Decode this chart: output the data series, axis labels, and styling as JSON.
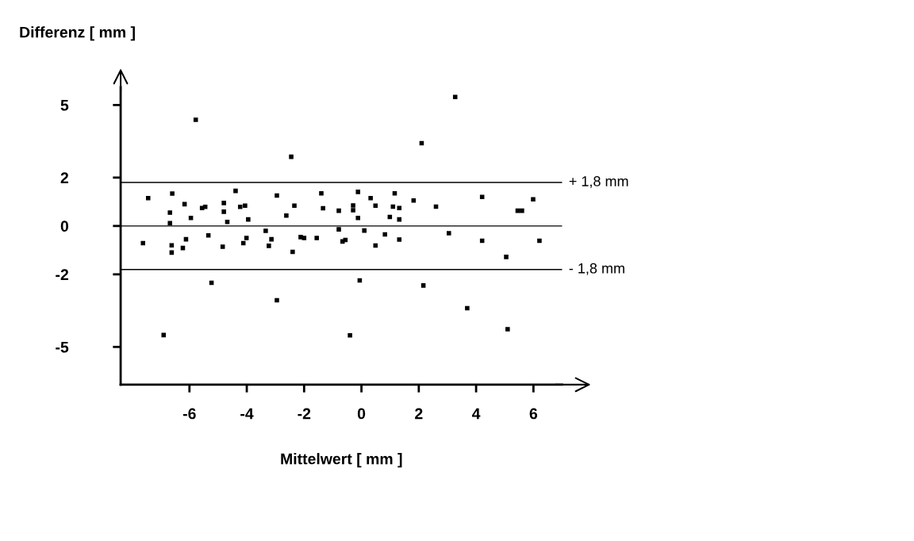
{
  "chart_data": {
    "type": "scatter",
    "xlabel": "Mittelwert [ mm ]",
    "ylabel": "Differenz [ mm ]",
    "x": [
      -5.78,
      -2.45,
      -7.44,
      -6.6,
      -6.68,
      -6.68,
      -6.17,
      -5.95,
      -5.56,
      -5.45,
      -4.8,
      -4.8,
      -4.68,
      -4.39,
      -4.23,
      -4.06,
      -3.95,
      -2.95,
      -2.62,
      -2.34,
      -1.4,
      -1.34,
      -0.79,
      -0.79,
      -7.62,
      -6.62,
      -6.62,
      -6.23,
      -6.12,
      -5.34,
      -4.84,
      -4.12,
      -4.01,
      -3.34,
      -3.23,
      -3.14,
      -2.4,
      -2.12,
      -2.0,
      -1.56,
      -0.66,
      -0.56,
      -5.23,
      -2.95,
      -6.9,
      3.27,
      2.1,
      -0.12,
      1.16,
      0.32,
      1.82,
      4.21,
      5.99,
      -0.29,
      -0.29,
      0.49,
      1.1,
      1.32,
      2.6,
      5.45,
      5.6,
      -0.12,
      0.99,
      1.32,
      0.1,
      0.82,
      1.32,
      0.49,
      3.05,
      4.21,
      6.21,
      5.05,
      -0.06,
      2.16,
      3.69,
      -0.4,
      5.1
    ],
    "values": [
      4.39,
      2.86,
      1.15,
      1.34,
      0.55,
      0.12,
      0.9,
      0.33,
      0.74,
      0.79,
      0.95,
      0.59,
      0.17,
      1.45,
      0.79,
      0.84,
      0.27,
      1.26,
      0.43,
      0.84,
      1.35,
      0.73,
      0.63,
      -0.14,
      -0.71,
      -0.8,
      -1.1,
      -0.91,
      -0.55,
      -0.39,
      -0.86,
      -0.71,
      -0.5,
      -0.2,
      -0.82,
      -0.55,
      -1.07,
      -0.46,
      -0.5,
      -0.5,
      -0.64,
      -0.58,
      -2.35,
      -3.07,
      -4.51,
      5.33,
      3.42,
      1.41,
      1.35,
      1.15,
      1.05,
      1.2,
      1.1,
      0.85,
      0.65,
      0.84,
      0.8,
      0.74,
      0.8,
      0.63,
      0.63,
      0.33,
      0.37,
      0.27,
      -0.19,
      -0.35,
      -0.56,
      -0.81,
      -0.3,
      -0.61,
      -0.61,
      -1.28,
      -2.25,
      -2.46,
      -3.4,
      -4.52,
      -4.27
    ],
    "color": "#000000",
    "marker": "square",
    "xlim": [
      -8.4,
      7.0
    ],
    "ylim": [
      -6.56,
      5.74
    ],
    "xticks": [
      -6,
      -4,
      -2,
      0,
      2,
      4,
      6
    ],
    "yticks": [
      5,
      2,
      0,
      -2,
      -5
    ],
    "ref_lines": [
      {
        "axis": "y",
        "value": 1.8,
        "label": "+ 1,8 mm",
        "color": "#000000"
      },
      {
        "axis": "y",
        "value": 0,
        "color": "#000000"
      },
      {
        "axis": "y",
        "value": -1.8,
        "label": "- 1,8 mm",
        "color": "#000000"
      }
    ],
    "grid": false,
    "legend": false
  }
}
